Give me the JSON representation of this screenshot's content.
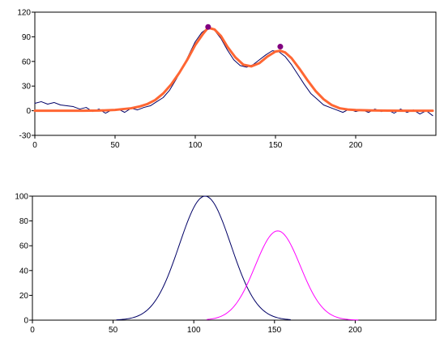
{
  "chart_data": [
    {
      "type": "line",
      "x_ticks": [
        0,
        50,
        100,
        150,
        200
      ],
      "y_ticks": [
        -30,
        0,
        30,
        60,
        90,
        120
      ],
      "xlim": [
        0,
        250
      ],
      "ylim": [
        -30,
        120
      ],
      "grid": false,
      "colors": {
        "signal": "#000066",
        "fit": "#ff6633",
        "peak": "#800080"
      },
      "series": [
        {
          "role": "noisy-signal",
          "color": "#000066",
          "x": [
            0,
            4,
            8,
            12,
            16,
            20,
            24,
            28,
            32,
            36,
            40,
            44,
            48,
            52,
            56,
            60,
            64,
            68,
            72,
            76,
            80,
            84,
            88,
            92,
            96,
            100,
            104,
            108,
            112,
            116,
            120,
            124,
            128,
            132,
            136,
            140,
            144,
            148,
            152,
            156,
            160,
            164,
            168,
            172,
            176,
            180,
            184,
            188,
            192,
            196,
            200,
            204,
            208,
            212,
            216,
            220,
            224,
            228,
            232,
            236,
            240,
            244,
            248
          ],
          "y": [
            9,
            11,
            8,
            10,
            7,
            6,
            5,
            2,
            4,
            -1,
            2,
            -3,
            1,
            2,
            -2,
            3,
            1,
            4,
            6,
            11,
            16,
            25,
            38,
            52,
            68,
            84,
            95,
            101,
            98,
            88,
            74,
            62,
            55,
            53,
            56,
            62,
            68,
            73,
            72,
            66,
            56,
            44,
            32,
            21,
            14,
            7,
            4,
            1,
            -2,
            2,
            -1,
            1,
            -2,
            2,
            -1,
            1,
            -3,
            2,
            -2,
            1,
            -4,
            0,
            -6
          ]
        },
        {
          "role": "fitted-curve",
          "color": "#ff6633",
          "x": [
            0,
            10,
            20,
            30,
            40,
            50,
            55,
            60,
            65,
            70,
            75,
            80,
            85,
            90,
            95,
            100,
            105,
            108,
            112,
            116,
            120,
            125,
            130,
            135,
            140,
            145,
            150,
            153,
            156,
            160,
            165,
            170,
            175,
            180,
            185,
            190,
            195,
            200,
            210,
            220,
            230,
            240,
            248
          ],
          "y": [
            0,
            0,
            0,
            0,
            0.2,
            1,
            2,
            3,
            5,
            8,
            13,
            21,
            32,
            46,
            62,
            80,
            94,
            101,
            99,
            91,
            78,
            65,
            56,
            54,
            58,
            66,
            72,
            73,
            71,
            64,
            51,
            37,
            24,
            14,
            7,
            3,
            1.5,
            0.8,
            0.3,
            0.1,
            0,
            0,
            0
          ]
        }
      ],
      "peaks": [
        {
          "x": 108,
          "y": 102
        },
        {
          "x": 153,
          "y": 78
        }
      ]
    },
    {
      "type": "line",
      "x_ticks": [
        0,
        50,
        100,
        150,
        200
      ],
      "y_ticks": [
        0,
        20,
        40,
        60,
        80,
        100
      ],
      "xlim": [
        0,
        250
      ],
      "ylim": [
        0,
        100
      ],
      "grid": false,
      "series": [
        {
          "role": "component-1",
          "color": "#000066",
          "center": 107,
          "amplitude": 100,
          "sigma": 16,
          "x_range": [
            52,
            160
          ]
        },
        {
          "role": "component-2",
          "color": "#ff00ff",
          "center": 152,
          "amplitude": 72,
          "sigma": 14,
          "x_range": [
            108,
            202
          ]
        }
      ]
    }
  ]
}
